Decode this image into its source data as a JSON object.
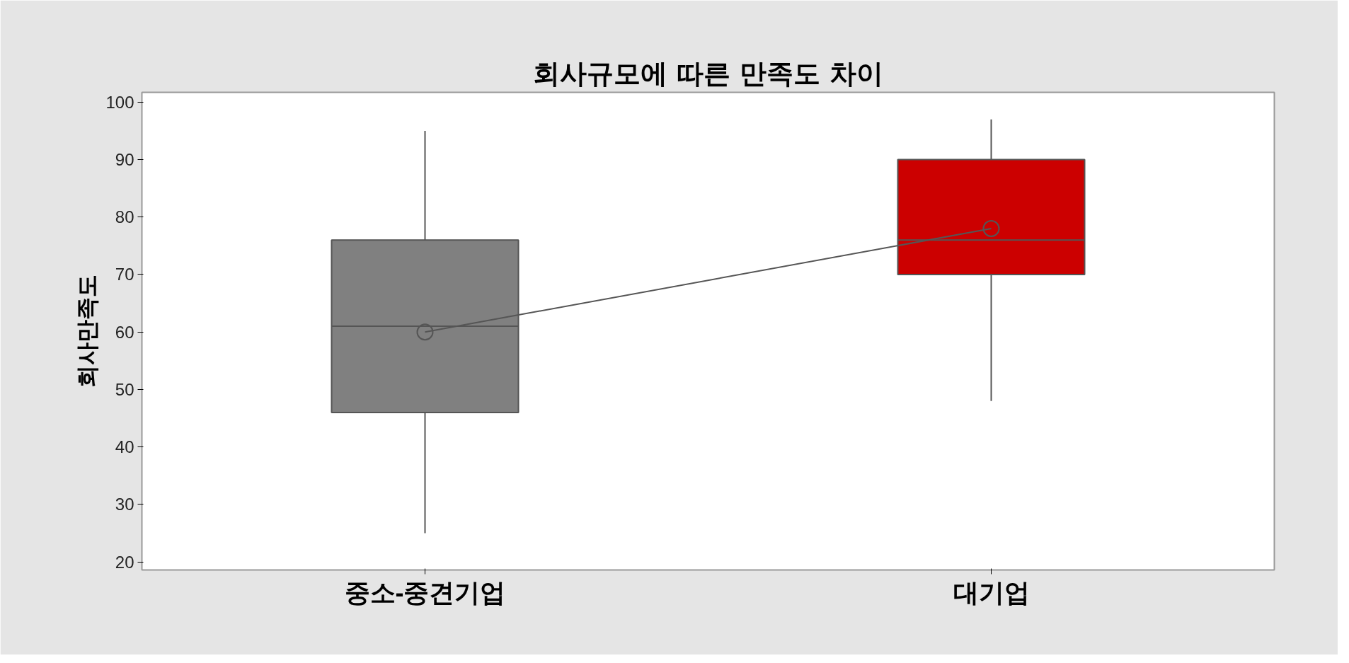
{
  "chart_data": {
    "type": "box",
    "title": "회사규모에 따른 만족도 차이",
    "ylabel": "회사만족도",
    "categories": [
      "중소-중견기업",
      "대기업"
    ],
    "colors": [
      "#808080",
      "#cc0000"
    ],
    "boxes": [
      {
        "low": 25,
        "q1": 46,
        "median": 61,
        "q3": 76,
        "high": 95
      },
      {
        "low": 48,
        "q1": 70,
        "median": 76,
        "q3": 90,
        "high": 97
      }
    ],
    "series": [
      {
        "type": "line",
        "color": "#555555",
        "values": [
          60,
          78
        ]
      }
    ],
    "marker": "circle",
    "ylim": [
      18.6,
      101.7
    ],
    "yticks": [
      20,
      30,
      40,
      50,
      60,
      70,
      80,
      90,
      100
    ]
  }
}
